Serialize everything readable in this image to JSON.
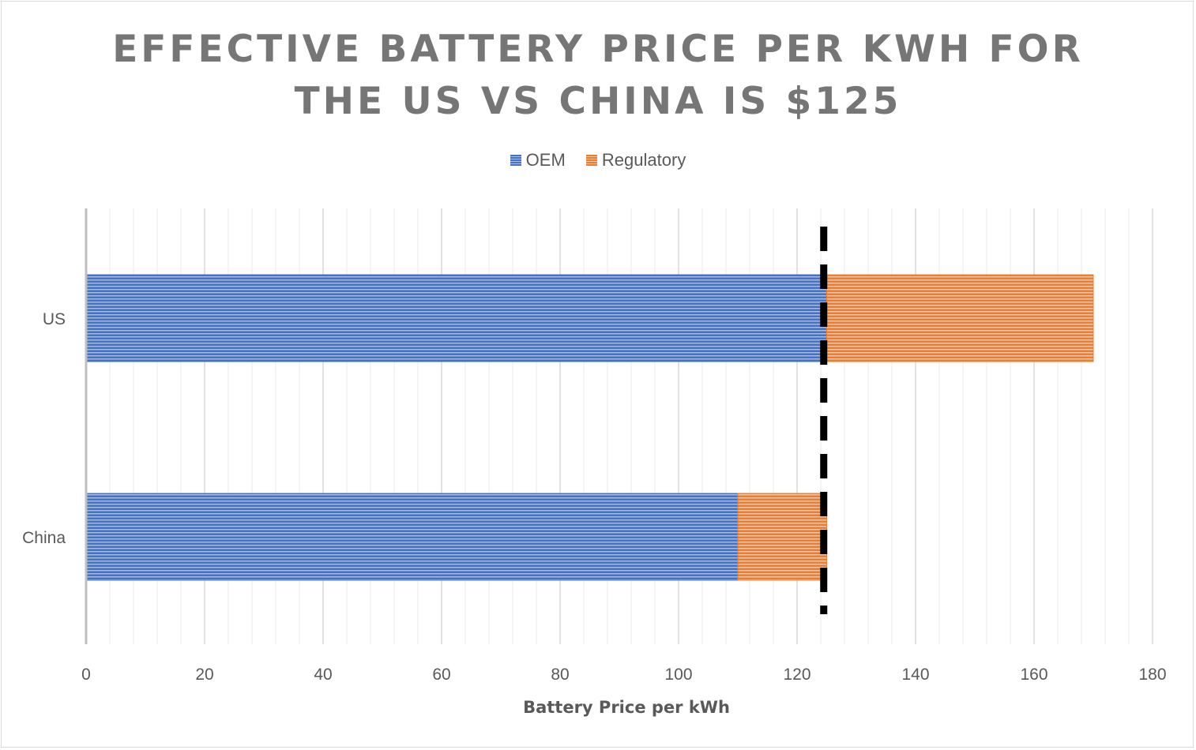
{
  "title_lines": [
    "EFFECTIVE BATTERY PRICE PER KWH FOR",
    "THE US VS CHINA IS $125"
  ],
  "colors": {
    "oem": "#4472c4",
    "oem_stripe": "#a9c1ea",
    "regulatory": "#ed7d31",
    "regulatory_stripe": "#f8c8a5",
    "reference_line": "#000000",
    "grid_major": "#d9d9d9",
    "grid_minor": "#ebebeb",
    "axis": "#bfbfbf"
  },
  "chart_data": {
    "type": "bar",
    "orientation": "horizontal",
    "stacked": true,
    "title": "EFFECTIVE BATTERY PRICE PER KWH FOR THE US VS CHINA IS $125",
    "categories": [
      "US",
      "China"
    ],
    "series": [
      {
        "name": "OEM",
        "values": [
          125,
          110
        ]
      },
      {
        "name": "Regulatory",
        "values": [
          45,
          15
        ]
      }
    ],
    "xlabel": "Battery Price per kWh",
    "ylabel": "",
    "xlim": [
      0,
      180
    ],
    "xticks": [
      0,
      20,
      40,
      60,
      80,
      100,
      120,
      140,
      160,
      180
    ],
    "minor_tick_step": 4,
    "reference_line": {
      "value": 124.5,
      "style": "dashed"
    },
    "legend_position": "top",
    "grid": true
  }
}
